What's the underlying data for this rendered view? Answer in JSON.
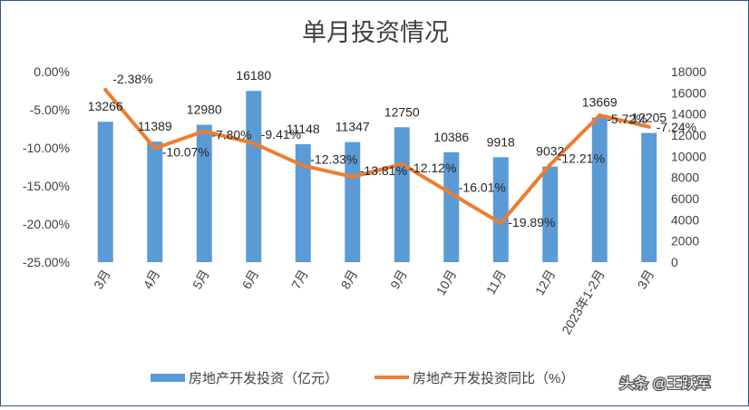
{
  "chart_data": {
    "type": "bar+line",
    "title": "单月投资情况",
    "categories": [
      "3月",
      "4月",
      "5月",
      "6月",
      "7月",
      "8月",
      "9月",
      "10月",
      "11月",
      "12月",
      "2023年1-2月",
      "3月"
    ],
    "series": [
      {
        "name": "房地产开发投资（亿元）",
        "type": "bar",
        "axis": "right",
        "color": "#5b9bd5",
        "values": [
          13266,
          11389,
          12980,
          16180,
          11148,
          11347,
          12750,
          10386,
          9918,
          9032,
          13669,
          12205
        ],
        "labels": [
          "13266",
          "11389",
          "12980",
          "16180",
          "11148",
          "11347",
          "12750",
          "10386",
          "9918",
          "9032",
          "13669",
          "12205"
        ]
      },
      {
        "name": "房地产开发投资同比（%）",
        "type": "line",
        "axis": "left",
        "color": "#ed7d31",
        "values": [
          -2.38,
          -10.07,
          -7.8,
          -9.41,
          -12.33,
          -13.81,
          -12.12,
          -16.01,
          -19.89,
          -12.21,
          -5.72,
          -7.24
        ],
        "labels": [
          "-2.38%",
          "-10.07%",
          "-7.80%",
          "-9.41%",
          "-12.33%",
          "-13.81%",
          "-12.12%",
          "-16.01%",
          "-19.89%",
          "-12.21%",
          "-5.72%",
          "-7.24%"
        ]
      }
    ],
    "y_left": {
      "min": -25,
      "max": 0,
      "step": 5,
      "tick_labels": [
        "0.00%",
        "-5.00%",
        "-10.00%",
        "-15.00%",
        "-20.00%",
        "-25.00%"
      ]
    },
    "y_right": {
      "min": 0,
      "max": 18000,
      "step": 2000,
      "tick_labels": [
        "18000",
        "16000",
        "14000",
        "12000",
        "10000",
        "8000",
        "6000",
        "4000",
        "2000",
        "0"
      ]
    },
    "grid": false,
    "legend_position": "bottom"
  },
  "watermark": "头条 @王跃军"
}
